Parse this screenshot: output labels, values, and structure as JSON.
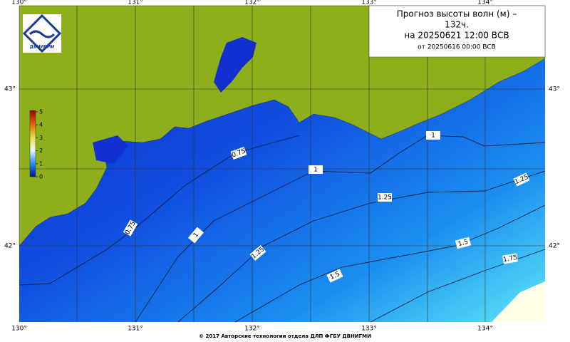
{
  "title": [
    "Прогноз высоты волн (м) –",
    "132ч.",
    "на 20250621 12:00 ВСВ",
    "от 20250616 00:00 ВСВ"
  ],
  "logo": "ДВНИГМИ",
  "lon_labels": [
    "130°",
    "131°",
    "132°",
    "133°",
    "134°"
  ],
  "lat_labels": [
    "43°",
    "42°"
  ],
  "colorbar": {
    "ticks": [
      0,
      1,
      2,
      3,
      4,
      5
    ]
  },
  "contour_labels": [
    "0.75",
    "0.75",
    "1",
    "1",
    "1",
    "1.25",
    "1.25",
    "1.25",
    "1.5",
    "1.5",
    "1.75"
  ],
  "footer": "© 2017 Авторские технологии отдела ДЛП ФГБУ ДВНИГМИ"
}
